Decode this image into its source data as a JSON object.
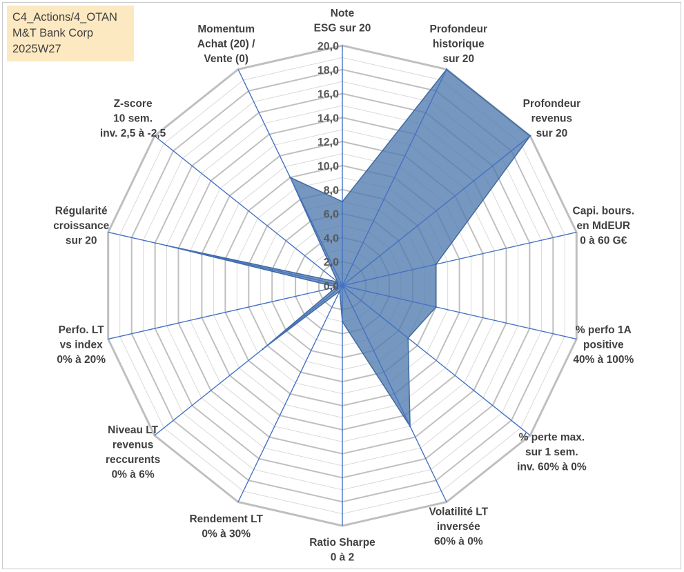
{
  "info_box": {
    "line1": "C4_Actions/4_OTAN",
    "line2": "M&T Bank Corp",
    "line3": "2025W27"
  },
  "chart_data": {
    "type": "radar",
    "rmin": 0,
    "rmax": 20,
    "tick_step": 2,
    "tick_labels": [
      "0,0",
      "2,0",
      "4,0",
      "6,0",
      "8,0",
      "10,0",
      "12,0",
      "14,0",
      "16,0",
      "18,0",
      "20,0"
    ],
    "grid": true,
    "axes": [
      {
        "label": [
          "Note",
          "ESG sur 20"
        ],
        "value": 7.0
      },
      {
        "label": [
          "Profondeur",
          "historique",
          "sur 20"
        ],
        "value": 20.0
      },
      {
        "label": [
          "Profondeur",
          "revenus",
          "sur 20"
        ],
        "value": 20.0
      },
      {
        "label": [
          "Capi. bours.",
          "en MdEUR",
          "0 à 60 G€"
        ],
        "value": 8.0
      },
      {
        "label": [
          "% perfo 1A",
          "positive",
          "40% à 100%"
        ],
        "value": 8.0
      },
      {
        "label": [
          "% perte max.",
          "sur 1 sem.",
          "inv. 60% à 0%"
        ],
        "value": 7.0
      },
      {
        "label": [
          "Volatilité LT",
          "inversée",
          "60% à 0%"
        ],
        "value": 13.0
      },
      {
        "label": [
          "Ratio Sharpe",
          "0 à 2"
        ],
        "value": 3.0
      },
      {
        "label": [
          "Rendement LT",
          "0% à 30%"
        ],
        "value": 0.5
      },
      {
        "label": [
          "Niveau LT",
          "revenus",
          "reccurents",
          "0% à 6%"
        ],
        "value": 8.5
      },
      {
        "label": [
          "Perfo. LT",
          "vs index",
          "0% à 20%"
        ],
        "value": 0.5
      },
      {
        "label": [
          "Régularité",
          "croissance",
          "sur 20"
        ],
        "value": 15.0
      },
      {
        "label": [
          "Z-score",
          "10 sem.",
          "inv. 2,5 à -2,5"
        ],
        "value": 0.5
      },
      {
        "label": [
          "Momentum",
          "Achat (20) /",
          "Vente (0)"
        ],
        "value": 10.0
      }
    ],
    "colors": {
      "fill": "#4f7aad",
      "fill_opacity": 0.78,
      "series_line": "#3e6aa1",
      "spoke": "#4472c4",
      "ring_major": "#bfbfbf",
      "ring_minor": "#d9d9d9"
    }
  }
}
